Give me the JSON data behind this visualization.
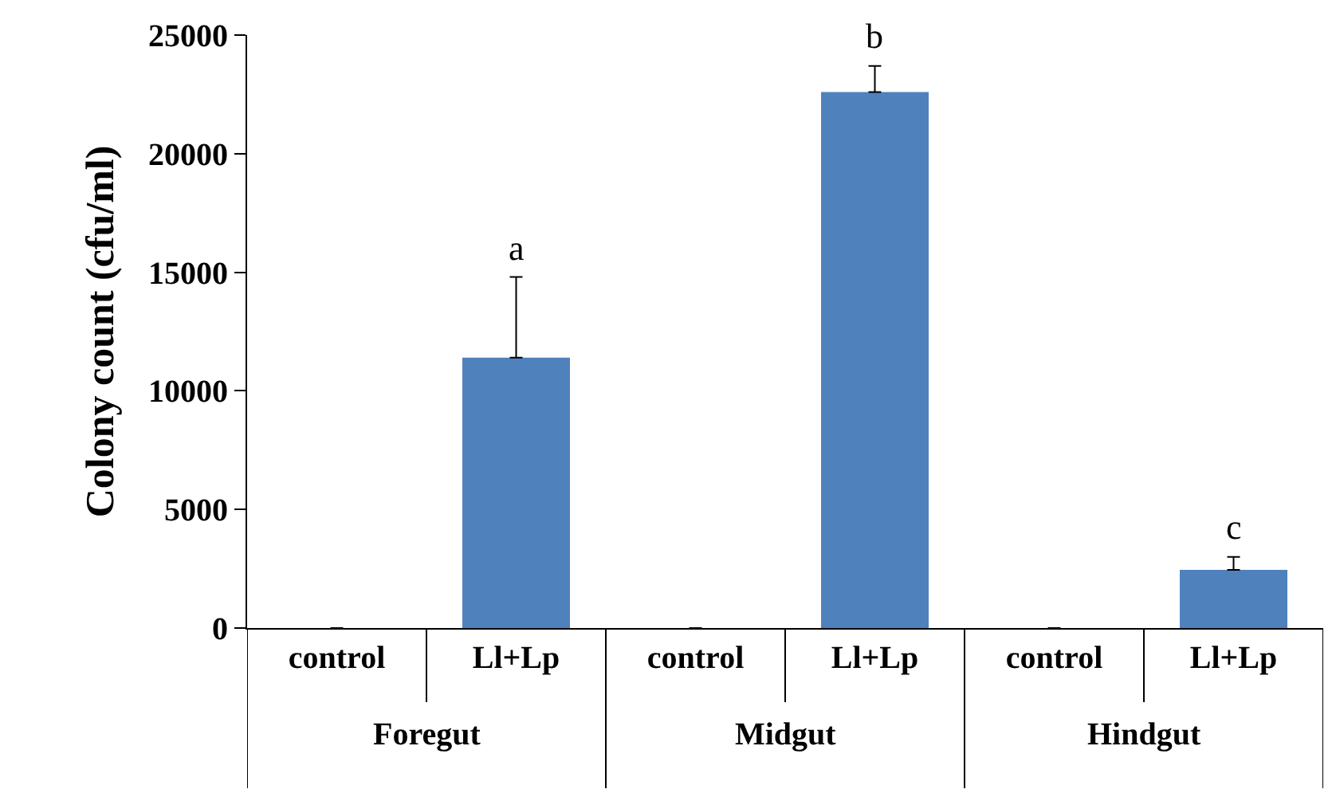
{
  "chart_data": {
    "type": "bar",
    "ylabel": "Colony count (cfu/ml)",
    "categories": [
      "control",
      "Ll+Lp",
      "control",
      "Ll+Lp",
      "control",
      "Ll+Lp"
    ],
    "values": [
      0,
      11400,
      0,
      22600,
      0,
      2450
    ],
    "errors": [
      null,
      [
        11400,
        14800
      ],
      null,
      [
        22600,
        23700
      ],
      null,
      [
        2450,
        3000
      ]
    ],
    "color": "#4f81bd",
    "ylim": [
      0,
      25000
    ],
    "yticks": [
      0,
      5000,
      10000,
      15000,
      20000,
      25000
    ],
    "grid": false,
    "annotations": [
      "a",
      "b",
      "c",
      "Foregut",
      "Midgut",
      "Hindgut"
    ]
  }
}
